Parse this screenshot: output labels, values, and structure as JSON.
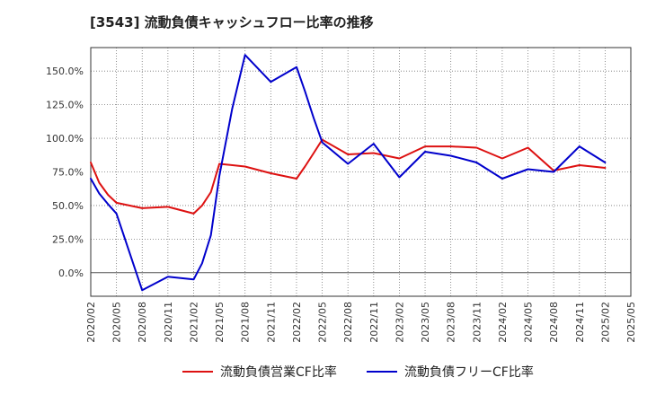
{
  "chart_data": {
    "type": "line",
    "title": "[3543]  流動負債キャッシュフロー比率の推移",
    "xlabel": "",
    "ylabel": "",
    "ylim": [
      -17.5,
      167.5
    ],
    "yticks": [
      0,
      25,
      50,
      75,
      100,
      125,
      150
    ],
    "ytick_labels": [
      "0.0%",
      "25.0%",
      "50.0%",
      "75.0%",
      "100.0%",
      "125.0%",
      "150.0%"
    ],
    "x_tick_labels": [
      "2020/02",
      "2020/05",
      "2020/08",
      "2020/11",
      "2021/02",
      "2021/05",
      "2021/08",
      "2021/11",
      "2022/02",
      "2022/05",
      "2022/08",
      "2022/11",
      "2023/02",
      "2023/05",
      "2023/08",
      "2023/11",
      "2024/02",
      "2024/05",
      "2024/08",
      "2024/11",
      "2025/02",
      "2025/05"
    ],
    "grid": true,
    "legend_position": "bottom-center",
    "series": [
      {
        "name": "流動負債営業CF比率",
        "color": "#dd1111",
        "points": [
          [
            0,
            82
          ],
          [
            0.33,
            67
          ],
          [
            0.67,
            58
          ],
          [
            1,
            52
          ],
          [
            2,
            48
          ],
          [
            3,
            49
          ],
          [
            4,
            44
          ],
          [
            4.33,
            50
          ],
          [
            4.67,
            60
          ],
          [
            5,
            81
          ],
          [
            6,
            79
          ],
          [
            7,
            74
          ],
          [
            8,
            70
          ],
          [
            8.33,
            79
          ],
          [
            8.67,
            89
          ],
          [
            9,
            99
          ],
          [
            10,
            88
          ],
          [
            11,
            89
          ],
          [
            12,
            85
          ],
          [
            13,
            94
          ],
          [
            14,
            94
          ],
          [
            15,
            93
          ],
          [
            16,
            85
          ],
          [
            17,
            93
          ],
          [
            18,
            76
          ],
          [
            19,
            80
          ],
          [
            20,
            78
          ]
        ]
      },
      {
        "name": "流動負債フリーCF比率",
        "color": "#0000cc",
        "points": [
          [
            0,
            70
          ],
          [
            0.33,
            59
          ],
          [
            0.67,
            51
          ],
          [
            1,
            44
          ],
          [
            2,
            -13
          ],
          [
            3,
            -3
          ],
          [
            4,
            -5
          ],
          [
            4.33,
            7
          ],
          [
            4.67,
            28
          ],
          [
            5,
            72
          ],
          [
            5.5,
            122
          ],
          [
            6,
            162
          ],
          [
            7,
            142
          ],
          [
            8,
            153
          ],
          [
            8.33,
            135
          ],
          [
            8.67,
            115
          ],
          [
            9,
            97
          ],
          [
            10,
            81
          ],
          [
            11,
            96
          ],
          [
            12,
            71
          ],
          [
            13,
            90
          ],
          [
            14,
            87
          ],
          [
            15,
            82
          ],
          [
            16,
            70
          ],
          [
            17,
            77
          ],
          [
            18,
            75
          ],
          [
            19,
            94
          ],
          [
            20,
            82
          ]
        ]
      }
    ]
  }
}
